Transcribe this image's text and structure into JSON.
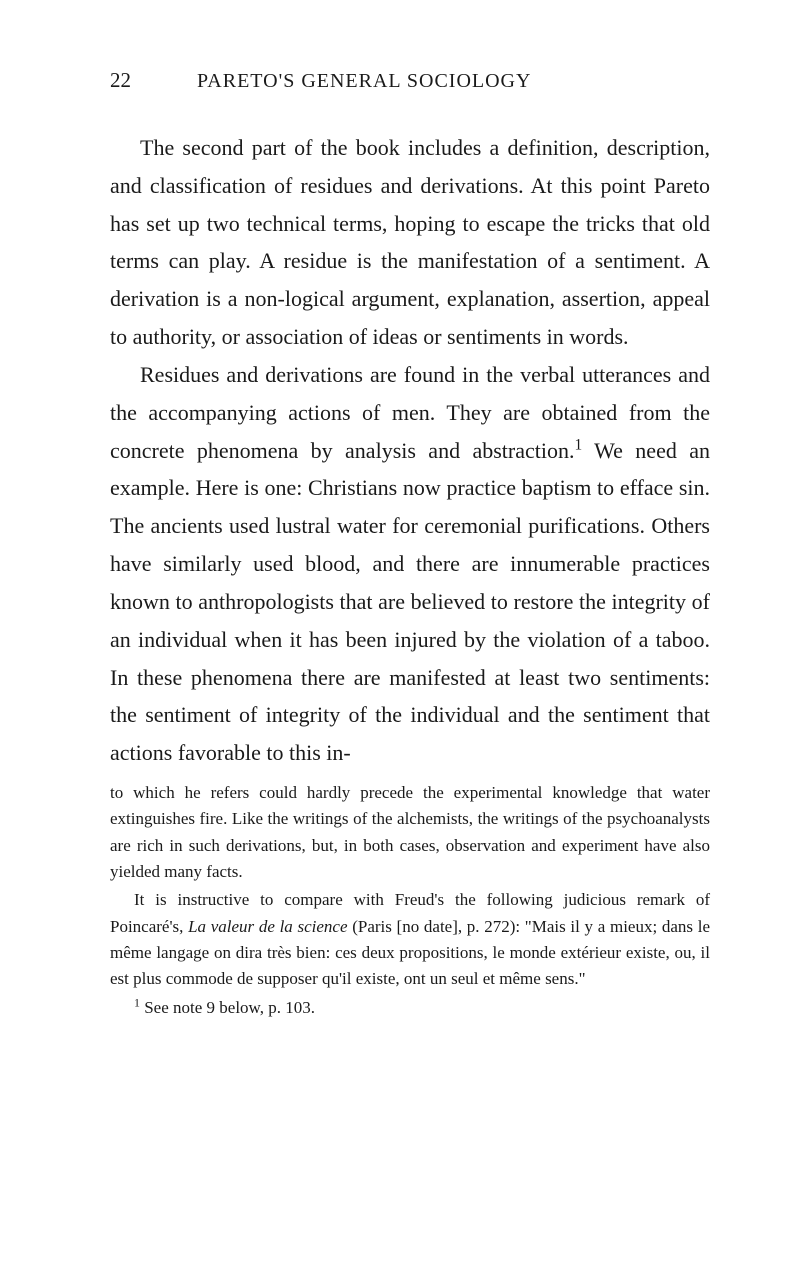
{
  "header": {
    "pageNumber": "22",
    "runningTitle": "PARETO'S GENERAL SOCIOLOGY"
  },
  "paragraphs": {
    "p1": "The second part of the book includes a defini­tion, description, and classification of residues and derivations. At this point Pareto has set up two technical terms, hoping to escape the tricks that old terms can play. A residue is the manifestation of a sentiment. A derivation is a non-logical argu­ment, explanation, assertion, appeal to authority, or association of ideas or sentiments in words.",
    "p2a": "Residues and derivations are found in the verbal utterances and the accompanying actions of men. They are obtained from the concrete phenomena by analysis and abstraction.",
    "p2sup": "1",
    "p2b": " We need an example. Here is one: Christians now practice baptism to efface sin. The ancients used lustral water for ceremonial purifications. Others have similarly used blood, and there are innumerable practices known to anthropologists that are believed to re­store the integrity of an individual when it has been injured by the violation of a taboo. In these phe­nomena there are manifested at least two senti­ments: the sentiment of integrity of the individual and the sentiment that actions favorable to this in-"
  },
  "footnotes": {
    "cont": "to which he refers could hardly precede the experimental knowledge that water extinguishes fire. Like the writings of the alchemists, the writings of the psychoanalysts are rich in such derivations, but, in both cases, observation and experiment have also yielded many facts.",
    "fn2a": "It is instructive to compare with Freud's the following judicious remark of Poincaré's, ",
    "fn2italic": "La valeur de la science",
    "fn2b": " (Paris [no date], p. 272): \"Mais il y a mieux; dans le même langage on dira très bien: ces deux propositions, le monde extérieur existe, ou, il est plus commode de supposer qu'il existe, ont un seul et même sens.\"",
    "fnref_sup": "1",
    "fnref_text": " See note 9 below, p. 103."
  },
  "style": {
    "backgroundColor": "#ffffff",
    "textColor": "#1a1a1a",
    "bodyFontSize": 22,
    "footnoteFontSize": 17,
    "headerFontSize": 20,
    "pageNumberFontSize": 21,
    "lineHeightBody": 1.72,
    "lineHeightFootnote": 1.55
  }
}
